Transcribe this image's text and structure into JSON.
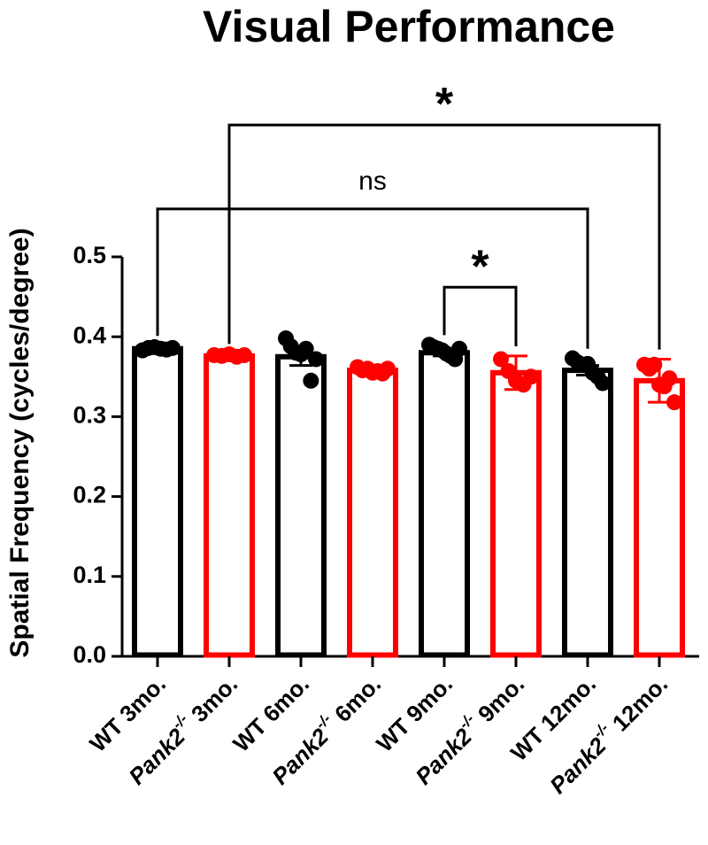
{
  "chart_data": {
    "type": "bar",
    "title": "Visual Performance",
    "xlabel": "",
    "ylabel": "Spatial Frequency (cycles/degree)",
    "ylim": [
      0,
      0.5
    ],
    "yticks": [
      "0.0",
      "0.1",
      "0.2",
      "0.3",
      "0.4",
      "0.5"
    ],
    "ytick_values": [
      0,
      0.1,
      0.2,
      0.3,
      0.4,
      0.5
    ],
    "grid": false,
    "legend": "none",
    "categories": [
      {
        "name": "WT 3mo.",
        "genotype": "WT",
        "age": "3mo.",
        "value": 0.385,
        "err": 0.004,
        "color": "#000000",
        "points": [
          0.383,
          0.386,
          0.387,
          0.385,
          0.384,
          0.386
        ]
      },
      {
        "name": "Pank2-/- 3mo.",
        "genotype": "Pank2",
        "sup": "-/-",
        "age": "3mo.",
        "value": 0.376,
        "err": 0.003,
        "color": "#ff0000",
        "points": [
          0.377,
          0.376,
          0.378,
          0.375,
          0.377
        ]
      },
      {
        "name": "WT 6mo.",
        "genotype": "WT",
        "age": "6mo.",
        "value": 0.375,
        "err": 0.011,
        "color": "#000000",
        "points": [
          0.398,
          0.388,
          0.38,
          0.378,
          0.385,
          0.345,
          0.372
        ]
      },
      {
        "name": "Pank2-/- 6mo.",
        "genotype": "Pank2",
        "sup": "-/-",
        "age": "6mo.",
        "value": 0.358,
        "err": 0.003,
        "color": "#ff0000",
        "points": [
          0.362,
          0.358,
          0.36,
          0.355,
          0.357,
          0.354,
          0.36
        ]
      },
      {
        "name": "WT 9mo.",
        "genotype": "WT",
        "age": "9mo.",
        "value": 0.38,
        "err": 0.004,
        "color": "#000000",
        "points": [
          0.39,
          0.387,
          0.385,
          0.383,
          0.379,
          0.376,
          0.372,
          0.385
        ]
      },
      {
        "name": "Pank2-/- 9mo.",
        "genotype": "Pank2",
        "sup": "-/-",
        "age": "9mo.",
        "value": 0.355,
        "err": 0.021,
        "color": "#ff0000",
        "points": [
          0.372,
          0.357,
          0.345,
          0.34,
          0.35
        ]
      },
      {
        "name": "WT 12mo.",
        "genotype": "WT",
        "age": "12mo.",
        "value": 0.358,
        "err": 0.006,
        "color": "#000000",
        "points": [
          0.373,
          0.368,
          0.365,
          0.366,
          0.355,
          0.35,
          0.342
        ]
      },
      {
        "name": "Pank2-/- 12mo.",
        "genotype": "Pank2",
        "sup": "-/-",
        "age": "12mo.",
        "value": 0.345,
        "err": 0.027,
        "color": "#ff0000",
        "points": [
          0.365,
          0.36,
          0.365,
          0.34,
          0.338,
          0.348,
          0.318
        ]
      }
    ],
    "significance": [
      {
        "from": 0,
        "to": 6,
        "label": "ns",
        "level": 0.56
      },
      {
        "from": 1,
        "to": 7,
        "label": "*",
        "level": 0.665
      },
      {
        "from": 4,
        "to": 5,
        "label": "*",
        "level": 0.462
      }
    ]
  }
}
